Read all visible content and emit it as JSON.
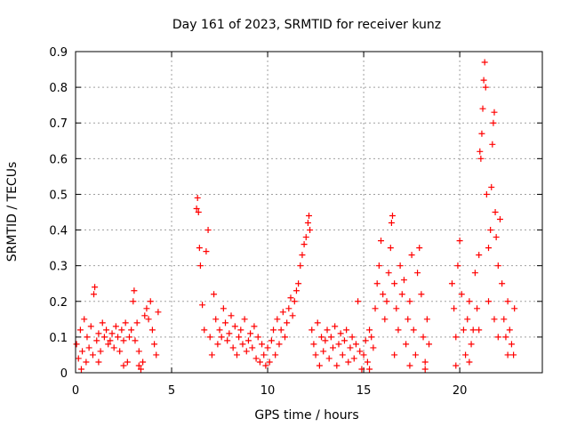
{
  "chart_data": {
    "type": "scatter",
    "title": "Day 161 of 2023, SRMTID for receiver kunz",
    "xlabel": "GPS time / hours",
    "ylabel": "SRMTID / TECUs",
    "xlim": [
      0,
      24.3
    ],
    "ylim": [
      0,
      0.9
    ],
    "x_ticks": [
      0,
      5,
      10,
      15,
      20
    ],
    "x_tick_labels": [
      "0",
      "5",
      "10",
      "15",
      "20"
    ],
    "y_ticks": [
      0,
      0.1,
      0.2,
      0.3,
      0.4,
      0.5,
      0.6,
      0.7,
      0.8,
      0.9
    ],
    "y_tick_labels": [
      "0",
      "0.1",
      "0.2",
      "0.3",
      "0.4",
      "0.5",
      "0.6",
      "0.7",
      "0.8",
      "0.9"
    ],
    "grid": true,
    "marker": "plus",
    "color": "#ff0000",
    "series": [
      {
        "name": "SRMTID",
        "points": [
          [
            0.05,
            0.08
          ],
          [
            0.15,
            0.04
          ],
          [
            0.25,
            0.12
          ],
          [
            0.35,
            0.06
          ],
          [
            0.45,
            0.15
          ],
          [
            0.55,
            0.03
          ],
          [
            0.6,
            0.1
          ],
          [
            0.7,
            0.07
          ],
          [
            0.8,
            0.13
          ],
          [
            0.9,
            0.05
          ],
          [
            0.95,
            0.22
          ],
          [
            1.0,
            0.24
          ],
          [
            1.1,
            0.09
          ],
          [
            1.2,
            0.11
          ],
          [
            1.3,
            0.06
          ],
          [
            1.4,
            0.14
          ],
          [
            1.5,
            0.1
          ],
          [
            1.6,
            0.12
          ],
          [
            1.7,
            0.08
          ],
          [
            1.8,
            0.09
          ],
          [
            1.9,
            0.11
          ],
          [
            2.0,
            0.07
          ],
          [
            2.1,
            0.13
          ],
          [
            2.2,
            0.1
          ],
          [
            2.3,
            0.06
          ],
          [
            2.4,
            0.12
          ],
          [
            2.5,
            0.09
          ],
          [
            2.6,
            0.14
          ],
          [
            2.7,
            0.03
          ],
          [
            2.8,
            0.1
          ],
          [
            2.9,
            0.12
          ],
          [
            3.0,
            0.2
          ],
          [
            3.05,
            0.23
          ],
          [
            3.1,
            0.09
          ],
          [
            3.2,
            0.14
          ],
          [
            3.3,
            0.06
          ],
          [
            3.4,
            0.01
          ],
          [
            3.5,
            0.03
          ],
          [
            3.6,
            0.16
          ],
          [
            3.7,
            0.18
          ],
          [
            3.8,
            0.15
          ],
          [
            3.9,
            0.2
          ],
          [
            4.0,
            0.12
          ],
          [
            4.1,
            0.08
          ],
          [
            4.2,
            0.05
          ],
          [
            4.3,
            0.17
          ],
          [
            0.3,
            0.01
          ],
          [
            1.2,
            0.03
          ],
          [
            2.5,
            0.02
          ],
          [
            3.3,
            0.02
          ],
          [
            6.3,
            0.46
          ],
          [
            6.35,
            0.49
          ],
          [
            6.4,
            0.45
          ],
          [
            6.45,
            0.35
          ],
          [
            6.5,
            0.3
          ],
          [
            6.6,
            0.19
          ],
          [
            6.7,
            0.12
          ],
          [
            6.8,
            0.34
          ],
          [
            6.9,
            0.4
          ],
          [
            7.0,
            0.1
          ],
          [
            7.1,
            0.05
          ],
          [
            7.2,
            0.22
          ],
          [
            7.3,
            0.15
          ],
          [
            7.4,
            0.08
          ],
          [
            7.5,
            0.12
          ],
          [
            7.6,
            0.1
          ],
          [
            7.7,
            0.18
          ],
          [
            7.8,
            0.14
          ],
          [
            7.9,
            0.09
          ],
          [
            8.0,
            0.11
          ],
          [
            8.1,
            0.16
          ],
          [
            8.2,
            0.07
          ],
          [
            8.3,
            0.13
          ],
          [
            8.4,
            0.05
          ],
          [
            8.5,
            0.1
          ],
          [
            8.6,
            0.12
          ],
          [
            8.7,
            0.08
          ],
          [
            8.8,
            0.15
          ],
          [
            8.9,
            0.06
          ],
          [
            9.0,
            0.09
          ],
          [
            9.1,
            0.11
          ],
          [
            9.2,
            0.07
          ],
          [
            9.3,
            0.13
          ],
          [
            9.4,
            0.04
          ],
          [
            9.5,
            0.1
          ],
          [
            9.6,
            0.03
          ],
          [
            9.7,
            0.08
          ],
          [
            9.8,
            0.05
          ],
          [
            9.9,
            0.02
          ],
          [
            10.0,
            0.07
          ],
          [
            10.1,
            0.03
          ],
          [
            10.2,
            0.09
          ],
          [
            10.3,
            0.12
          ],
          [
            10.4,
            0.05
          ],
          [
            10.5,
            0.15
          ],
          [
            10.6,
            0.08
          ],
          [
            10.7,
            0.12
          ],
          [
            10.8,
            0.17
          ],
          [
            10.9,
            0.1
          ],
          [
            11.0,
            0.14
          ],
          [
            11.1,
            0.18
          ],
          [
            11.2,
            0.21
          ],
          [
            11.3,
            0.16
          ],
          [
            11.4,
            0.2
          ],
          [
            11.5,
            0.23
          ],
          [
            11.6,
            0.25
          ],
          [
            11.7,
            0.3
          ],
          [
            11.8,
            0.33
          ],
          [
            11.9,
            0.36
          ],
          [
            12.0,
            0.38
          ],
          [
            12.1,
            0.42
          ],
          [
            12.15,
            0.44
          ],
          [
            12.2,
            0.4
          ],
          [
            12.3,
            0.12
          ],
          [
            12.4,
            0.08
          ],
          [
            12.5,
            0.05
          ],
          [
            12.6,
            0.14
          ],
          [
            12.7,
            0.02
          ],
          [
            12.8,
            0.1
          ],
          [
            12.9,
            0.06
          ],
          [
            13.0,
            0.09
          ],
          [
            13.1,
            0.12
          ],
          [
            13.2,
            0.04
          ],
          [
            13.3,
            0.1
          ],
          [
            13.4,
            0.07
          ],
          [
            13.5,
            0.13
          ],
          [
            13.6,
            0.02
          ],
          [
            13.7,
            0.08
          ],
          [
            13.8,
            0.11
          ],
          [
            13.9,
            0.05
          ],
          [
            14.0,
            0.09
          ],
          [
            14.1,
            0.12
          ],
          [
            14.2,
            0.03
          ],
          [
            14.3,
            0.07
          ],
          [
            14.4,
            0.1
          ],
          [
            14.5,
            0.04
          ],
          [
            14.6,
            0.08
          ],
          [
            14.7,
            0.2
          ],
          [
            14.8,
            0.06
          ],
          [
            14.9,
            0.01
          ],
          [
            15.0,
            0.05
          ],
          [
            15.1,
            0.09
          ],
          [
            15.2,
            0.03
          ],
          [
            15.3,
            0.12
          ],
          [
            15.4,
            0.1
          ],
          [
            15.5,
            0.07
          ],
          [
            15.6,
            0.18
          ],
          [
            15.7,
            0.25
          ],
          [
            15.8,
            0.3
          ],
          [
            15.9,
            0.37
          ],
          [
            16.0,
            0.22
          ],
          [
            16.1,
            0.15
          ],
          [
            16.2,
            0.2
          ],
          [
            16.3,
            0.28
          ],
          [
            16.4,
            0.35
          ],
          [
            16.45,
            0.42
          ],
          [
            16.5,
            0.44
          ],
          [
            16.6,
            0.25
          ],
          [
            16.7,
            0.18
          ],
          [
            16.8,
            0.12
          ],
          [
            16.9,
            0.3
          ],
          [
            17.0,
            0.22
          ],
          [
            17.1,
            0.26
          ],
          [
            17.2,
            0.08
          ],
          [
            17.3,
            0.15
          ],
          [
            17.4,
            0.2
          ],
          [
            17.5,
            0.33
          ],
          [
            17.6,
            0.12
          ],
          [
            17.7,
            0.05
          ],
          [
            17.8,
            0.28
          ],
          [
            17.9,
            0.35
          ],
          [
            18.0,
            0.22
          ],
          [
            18.1,
            0.1
          ],
          [
            18.2,
            0.03
          ],
          [
            18.3,
            0.15
          ],
          [
            18.4,
            0.08
          ],
          [
            15.3,
            0.01
          ],
          [
            16.6,
            0.05
          ],
          [
            17.4,
            0.02
          ],
          [
            18.2,
            0.01
          ],
          [
            19.6,
            0.25
          ],
          [
            19.7,
            0.18
          ],
          [
            19.8,
            0.1
          ],
          [
            19.9,
            0.3
          ],
          [
            20.0,
            0.37
          ],
          [
            20.1,
            0.22
          ],
          [
            20.2,
            0.12
          ],
          [
            20.3,
            0.05
          ],
          [
            20.4,
            0.15
          ],
          [
            20.5,
            0.2
          ],
          [
            20.6,
            0.08
          ],
          [
            20.7,
            0.12
          ],
          [
            20.8,
            0.28
          ],
          [
            20.9,
            0.18
          ],
          [
            21.0,
            0.33
          ],
          [
            21.05,
            0.62
          ],
          [
            21.1,
            0.6
          ],
          [
            21.15,
            0.67
          ],
          [
            21.2,
            0.74
          ],
          [
            21.25,
            0.82
          ],
          [
            21.3,
            0.87
          ],
          [
            21.35,
            0.8
          ],
          [
            21.4,
            0.5
          ],
          [
            21.5,
            0.35
          ],
          [
            21.6,
            0.4
          ],
          [
            21.65,
            0.52
          ],
          [
            21.7,
            0.64
          ],
          [
            21.75,
            0.7
          ],
          [
            21.8,
            0.73
          ],
          [
            21.85,
            0.45
          ],
          [
            21.9,
            0.38
          ],
          [
            22.0,
            0.3
          ],
          [
            22.1,
            0.43
          ],
          [
            22.2,
            0.25
          ],
          [
            22.3,
            0.15
          ],
          [
            22.4,
            0.1
          ],
          [
            22.5,
            0.2
          ],
          [
            22.6,
            0.12
          ],
          [
            22.7,
            0.08
          ],
          [
            22.8,
            0.05
          ],
          [
            22.85,
            0.18
          ],
          [
            21.0,
            0.12
          ],
          [
            21.5,
            0.2
          ],
          [
            22.0,
            0.1
          ],
          [
            22.5,
            0.05
          ],
          [
            20.5,
            0.03
          ],
          [
            19.8,
            0.02
          ],
          [
            21.8,
            0.15
          ]
        ]
      }
    ]
  }
}
